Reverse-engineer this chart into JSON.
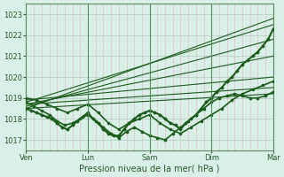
{
  "title": "",
  "xlabel": "Pression niveau de la mer( hPa )",
  "xlim": [
    0,
    96
  ],
  "ylim": [
    1016.5,
    1023.5
  ],
  "yticks": [
    1017,
    1018,
    1019,
    1020,
    1021,
    1022,
    1023
  ],
  "xtick_positions": [
    0,
    24,
    48,
    72,
    96
  ],
  "xtick_labels": [
    "Ven",
    "Lun",
    "Sam",
    "Dim",
    "Mar"
  ],
  "bg_color": "#d8f0e8",
  "plot_bg_color": "#d8f0e8",
  "grid_color_v": "#f0a0a0",
  "grid_color_h": "#b8d8c8",
  "line_color": "#1a5c1a",
  "straight_lines": [
    {
      "x0": 0,
      "y0": 1018.5,
      "x1": 96,
      "y1": 1022.8
    },
    {
      "x0": 0,
      "y0": 1018.8,
      "x1": 96,
      "y1": 1022.5
    },
    {
      "x0": 0,
      "y0": 1018.6,
      "x1": 96,
      "y1": 1021.8
    },
    {
      "x0": 0,
      "y0": 1018.7,
      "x1": 96,
      "y1": 1021.0
    },
    {
      "x0": 0,
      "y0": 1018.9,
      "x1": 96,
      "y1": 1020.0
    },
    {
      "x0": 0,
      "y0": 1018.7,
      "x1": 96,
      "y1": 1019.5
    },
    {
      "x0": 0,
      "y0": 1018.5,
      "x1": 96,
      "y1": 1019.2
    }
  ],
  "wavy_lines": [
    {
      "x": [
        0,
        2,
        4,
        6,
        8,
        10,
        12,
        14,
        16,
        18,
        20,
        22,
        24,
        26,
        28,
        30,
        32,
        34,
        36,
        38,
        40,
        42,
        44,
        46,
        48,
        50,
        52,
        54,
        56,
        58,
        60,
        62,
        64,
        66,
        68,
        70,
        72,
        74,
        76,
        78,
        80,
        82,
        84,
        86,
        88,
        90,
        92,
        94,
        96
      ],
      "y": [
        1018.5,
        1018.4,
        1018.3,
        1018.2,
        1018.1,
        1018.0,
        1017.8,
        1017.6,
        1017.5,
        1017.7,
        1017.9,
        1018.1,
        1018.3,
        1018.0,
        1017.8,
        1017.5,
        1017.3,
        1017.2,
        1017.2,
        1017.5,
        1017.8,
        1018.0,
        1018.2,
        1018.3,
        1018.4,
        1018.3,
        1018.2,
        1018.0,
        1017.8,
        1017.7,
        1017.5,
        1017.8,
        1018.0,
        1018.2,
        1018.5,
        1018.8,
        1019.0,
        1019.3,
        1019.5,
        1019.8,
        1020.0,
        1020.3,
        1020.6,
        1020.8,
        1021.0,
        1021.2,
        1021.5,
        1021.8,
        1022.3
      ],
      "marker": "D",
      "lw": 1.5
    },
    {
      "x": [
        0,
        3,
        6,
        9,
        12,
        15,
        18,
        21,
        24,
        27,
        30,
        33,
        36,
        39,
        42,
        45,
        48,
        51,
        54,
        57,
        60,
        63,
        66,
        69,
        72,
        75,
        78,
        81,
        84,
        87,
        90,
        93,
        96
      ],
      "y": [
        1018.8,
        1018.6,
        1018.4,
        1018.2,
        1017.9,
        1017.7,
        1017.8,
        1018.0,
        1018.2,
        1017.9,
        1017.6,
        1017.3,
        1017.1,
        1017.4,
        1017.6,
        1017.4,
        1017.2,
        1017.1,
        1017.0,
        1017.3,
        1017.6,
        1017.9,
        1018.2,
        1018.5,
        1018.8,
        1019.0,
        1019.1,
        1019.2,
        1019.1,
        1019.0,
        1019.0,
        1019.1,
        1019.3
      ],
      "marker": "s",
      "lw": 1.2
    },
    {
      "x": [
        0,
        4,
        8,
        12,
        16,
        20,
        24,
        28,
        32,
        36,
        40,
        44,
        48,
        52,
        56,
        60,
        64,
        68,
        72,
        76,
        80,
        84,
        88,
        92,
        96
      ],
      "y": [
        1019.0,
        1018.9,
        1018.7,
        1018.5,
        1018.3,
        1018.5,
        1018.7,
        1018.3,
        1017.8,
        1017.5,
        1017.8,
        1018.0,
        1018.2,
        1017.8,
        1017.5,
        1017.3,
        1017.6,
        1017.9,
        1018.2,
        1018.5,
        1018.9,
        1019.2,
        1019.4,
        1019.6,
        1019.8
      ],
      "marker": "o",
      "lw": 1.2
    }
  ]
}
